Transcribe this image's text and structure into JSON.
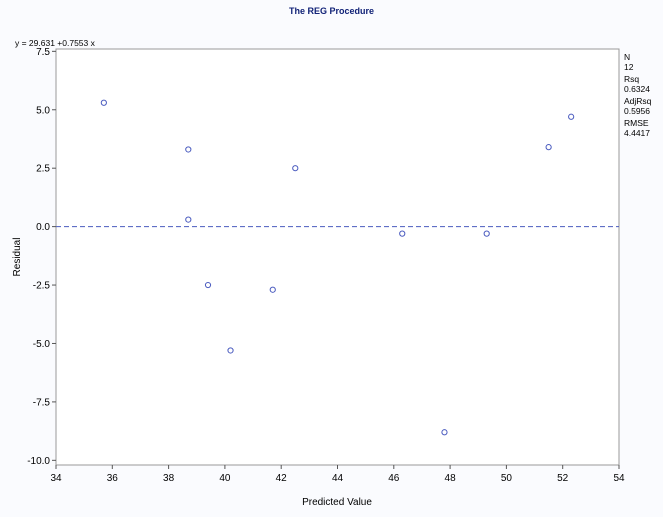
{
  "page_title": "The REG Procedure",
  "equation": "y = 29.631 +0.7553 x",
  "stats": [
    {
      "label": "N",
      "value": "12"
    },
    {
      "label": "Rsq",
      "value": "0.6324"
    },
    {
      "label": "AdjRsq",
      "value": "0.5956"
    },
    {
      "label": "RMSE",
      "value": "4.4417"
    }
  ],
  "colors": {
    "marker": "#4a5bbf",
    "reference_line": "#4a5bbf",
    "title": "#112277"
  },
  "chart_data": {
    "type": "scatter",
    "title": "",
    "xlabel": "Predicted Value",
    "ylabel": "Residual",
    "xlim": [
      34,
      54
    ],
    "ylim": [
      -10.2,
      7.6
    ],
    "xticks": [
      34,
      36,
      38,
      40,
      42,
      44,
      46,
      48,
      50,
      52,
      54
    ],
    "yticks": [
      7.5,
      5.0,
      2.5,
      0.0,
      -2.5,
      -5.0,
      -7.5,
      -10.0
    ],
    "ytick_labels": [
      "7.5",
      "5.0",
      "2.5",
      "0.0",
      "-2.5",
      "-5.0",
      "-7.5",
      "-10.0"
    ],
    "reference_line_y": 0,
    "grid": false,
    "x": [
      35.7,
      38.7,
      38.7,
      39.4,
      40.2,
      41.7,
      42.5,
      46.3,
      47.8,
      49.3,
      51.5,
      52.3
    ],
    "y": [
      5.3,
      3.3,
      0.3,
      -2.5,
      -5.3,
      -2.7,
      2.5,
      -0.3,
      -8.8,
      -0.3,
      3.4,
      4.7
    ]
  }
}
